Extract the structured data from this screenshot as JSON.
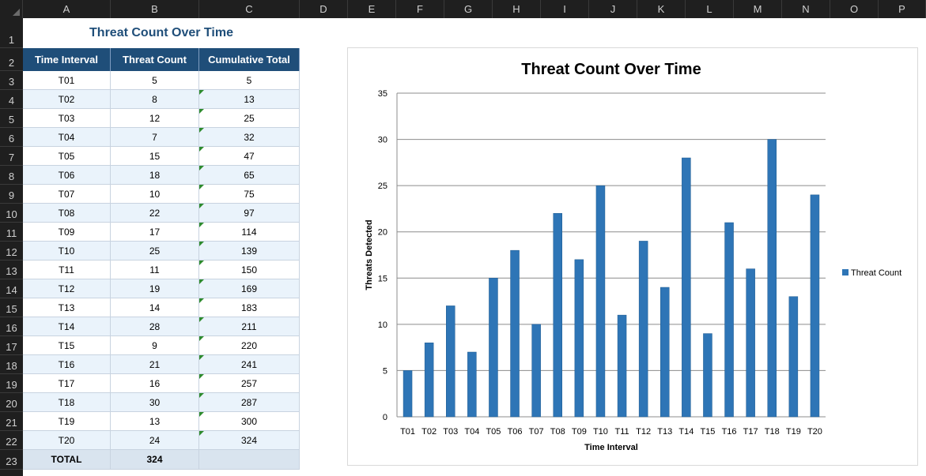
{
  "columns": [
    "A",
    "B",
    "C",
    "D",
    "E",
    "F",
    "G",
    "H",
    "I",
    "J",
    "K",
    "L",
    "M",
    "N",
    "O",
    "P"
  ],
  "rows": [
    "1",
    "2",
    "3",
    "4",
    "5",
    "6",
    "7",
    "8",
    "9",
    "10",
    "11",
    "12",
    "13",
    "14",
    "15",
    "16",
    "17",
    "18",
    "19",
    "20",
    "21",
    "22",
    "23"
  ],
  "sheet": {
    "title": "Threat Count Over Time",
    "headers": [
      "Time Interval",
      "Threat Count",
      "Cumulative Total"
    ],
    "data": [
      [
        "T01",
        "5",
        "5"
      ],
      [
        "T02",
        "8",
        "13"
      ],
      [
        "T03",
        "12",
        "25"
      ],
      [
        "T04",
        "7",
        "32"
      ],
      [
        "T05",
        "15",
        "47"
      ],
      [
        "T06",
        "18",
        "65"
      ],
      [
        "T07",
        "10",
        "75"
      ],
      [
        "T08",
        "22",
        "97"
      ],
      [
        "T09",
        "17",
        "114"
      ],
      [
        "T10",
        "25",
        "139"
      ],
      [
        "T11",
        "11",
        "150"
      ],
      [
        "T12",
        "19",
        "169"
      ],
      [
        "T13",
        "14",
        "183"
      ],
      [
        "T14",
        "28",
        "211"
      ],
      [
        "T15",
        "9",
        "220"
      ],
      [
        "T16",
        "21",
        "241"
      ],
      [
        "T17",
        "16",
        "257"
      ],
      [
        "T18",
        "30",
        "287"
      ],
      [
        "T19",
        "13",
        "300"
      ],
      [
        "T20",
        "24",
        "324"
      ]
    ],
    "total": [
      "TOTAL",
      "324",
      ""
    ]
  },
  "colors": {
    "header_bg": "#1f4e79",
    "bar": "#2e75b6",
    "even_row": "#eaf3fb"
  },
  "chart_data": {
    "type": "bar",
    "title": "Threat Count Over Time",
    "xlabel": "Time Interval",
    "ylabel": "Threats Detected",
    "categories": [
      "T01",
      "T02",
      "T03",
      "T04",
      "T05",
      "T06",
      "T07",
      "T08",
      "T09",
      "T10",
      "T11",
      "T12",
      "T13",
      "T14",
      "T15",
      "T16",
      "T17",
      "T18",
      "T19",
      "T20"
    ],
    "series": [
      {
        "name": "Threat Count",
        "values": [
          5,
          8,
          12,
          7,
          15,
          18,
          10,
          22,
          17,
          25,
          11,
          19,
          14,
          28,
          9,
          21,
          16,
          30,
          13,
          24
        ]
      }
    ],
    "ylim": [
      0,
      35
    ],
    "yticks": [
      0,
      5,
      10,
      15,
      20,
      25,
      30,
      35
    ],
    "grid": true,
    "legend": "right"
  }
}
